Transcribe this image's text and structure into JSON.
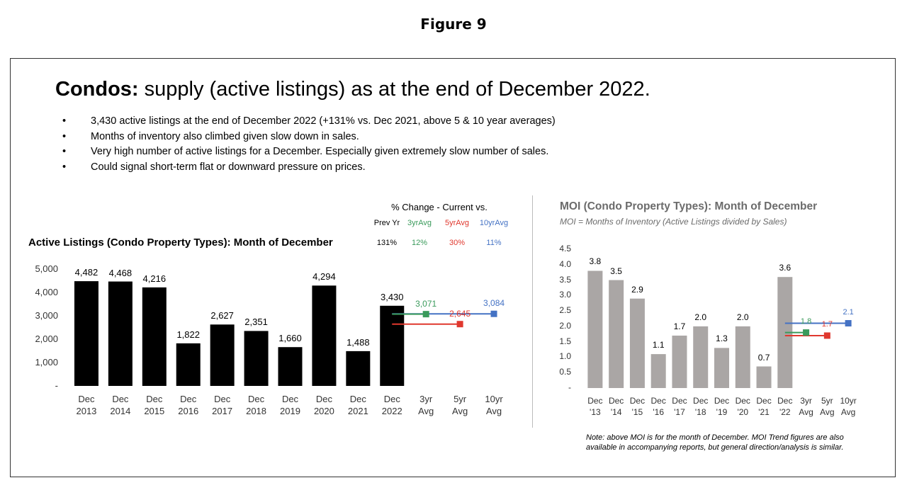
{
  "figure_label": "Figure 9",
  "slide": {
    "title_bold": "Condos:",
    "title_rest": " supply (active listings) as at the end of December 2022.",
    "bullets": [
      "3,430 active listings at the end of December 2022 (+131% vs. Dec 2021, above 5 & 10 year averages)",
      "Months of inventory also climbed given slow down in sales.",
      "Very high number of active listings for a December.  Especially given extremely slow number of sales.",
      "Could signal short-term flat or downward pressure on prices."
    ]
  },
  "chart_data": [
    {
      "type": "bar",
      "title": "Active Listings (Condo Property Types): Month of December",
      "categories": [
        "Dec 2013",
        "Dec 2014",
        "Dec 2015",
        "Dec 2016",
        "Dec 2017",
        "Dec 2018",
        "Dec 2019",
        "Dec 2020",
        "Dec 2021",
        "Dec 2022",
        "3yr Avg",
        "5yr Avg",
        "10yr Avg"
      ],
      "values": [
        4482,
        4468,
        4216,
        1822,
        2627,
        2351,
        1660,
        4294,
        1488,
        3430,
        null,
        null,
        null
      ],
      "value_labels": [
        "4,482",
        "4,468",
        "4,216",
        "1,822",
        "2,627",
        "2,351",
        "1,660",
        "4,294",
        "1,488",
        "3,430",
        null,
        null,
        null
      ],
      "color": "#000000",
      "averages": {
        "values": [
          3071,
          2645,
          3084
        ],
        "value_labels": [
          "3,071",
          "2,645",
          "3,084"
        ],
        "colors": [
          "#3a9a5b",
          "#e0382e",
          "#4472c4"
        ]
      },
      "change_table": {
        "title": "% Change - Current vs.",
        "headers": [
          "Prev Yr",
          "3yrAvg",
          "5yrAvg",
          "10yrAvg"
        ],
        "values": [
          131,
          12,
          30,
          11
        ],
        "value_labels": [
          "131%",
          "12%",
          "30%",
          "11%"
        ],
        "colors": [
          "#000000",
          "#3a9a5b",
          "#e0382e",
          "#4472c4"
        ]
      },
      "ylim": [
        0,
        5000
      ],
      "yticks": [
        {
          "value": 0,
          "label": "-"
        },
        {
          "value": 1000,
          "label": "1,000"
        },
        {
          "value": 2000,
          "label": "2,000"
        },
        {
          "value": 3000,
          "label": "3,000"
        },
        {
          "value": 4000,
          "label": "4,000"
        },
        {
          "value": 5000,
          "label": "5,000"
        }
      ]
    },
    {
      "type": "bar",
      "title": "MOI (Condo Property Types): Month of December",
      "subtitle": "MOI = Months of Inventory (Active Listings divided by Sales)",
      "categories": [
        "Dec '13",
        "Dec '14",
        "Dec '15",
        "Dec '16",
        "Dec '17",
        "Dec '18",
        "Dec '19",
        "Dec '20",
        "Dec '21",
        "Dec '22",
        "3yr Avg",
        "5yr Avg",
        "10yr Avg"
      ],
      "values": [
        3.8,
        3.5,
        2.9,
        1.1,
        1.7,
        2.0,
        1.3,
        2.0,
        0.7,
        3.6,
        null,
        null,
        null
      ],
      "value_labels": [
        "3.8",
        "3.5",
        "2.9",
        "1.1",
        "1.7",
        "2.0",
        "1.3",
        "2.0",
        "0.7",
        "3.6",
        null,
        null,
        null
      ],
      "color": "#aaa6a5",
      "averages": {
        "values": [
          1.8,
          1.7,
          2.1
        ],
        "value_labels": [
          "1.8",
          "1.7",
          "2.1"
        ],
        "colors": [
          "#3a9a5b",
          "#e0382e",
          "#4472c4"
        ]
      },
      "ylim": [
        0,
        4.5
      ],
      "yticks": [
        {
          "value": 0,
          "label": "-"
        },
        0.5,
        {
          "value": 1,
          "label": "1.0"
        },
        1.5,
        {
          "value": 2,
          "label": "2.0"
        },
        2.5,
        {
          "value": 3,
          "label": "3.0"
        },
        3.5,
        {
          "value": 4,
          "label": "4.0"
        },
        4.5
      ],
      "note": "Note: above MOI is for the month of December.  MOI Trend figures are also available in accompanying reports, but general direction/analysis is similar."
    }
  ]
}
